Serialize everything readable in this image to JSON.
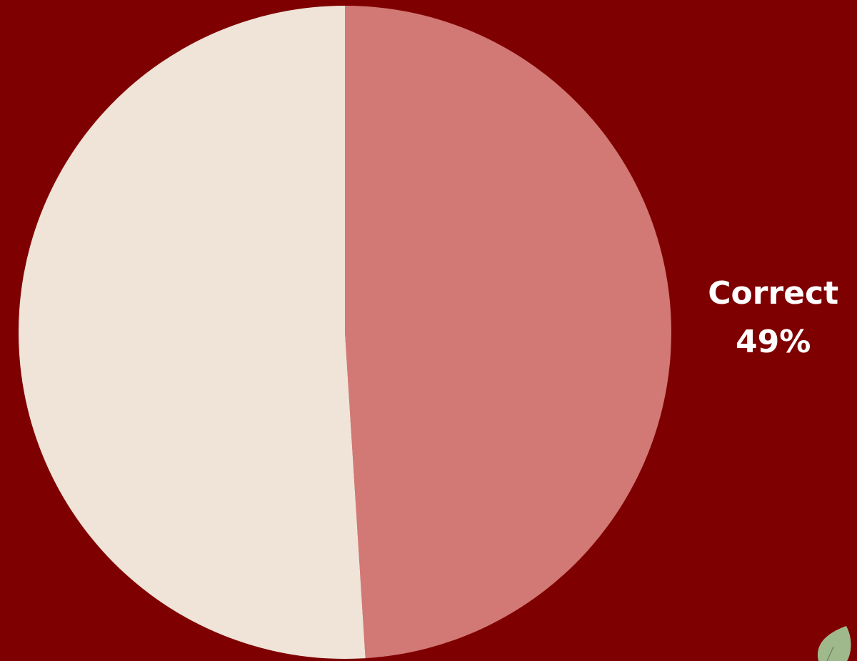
{
  "chart_data": {
    "type": "pie",
    "categories": [
      "Correct",
      null
    ],
    "values": [
      49,
      51
    ],
    "value_labels": [
      "49%",
      null
    ],
    "colors": [
      "#d27875",
      "#f0e3d8"
    ]
  }
}
